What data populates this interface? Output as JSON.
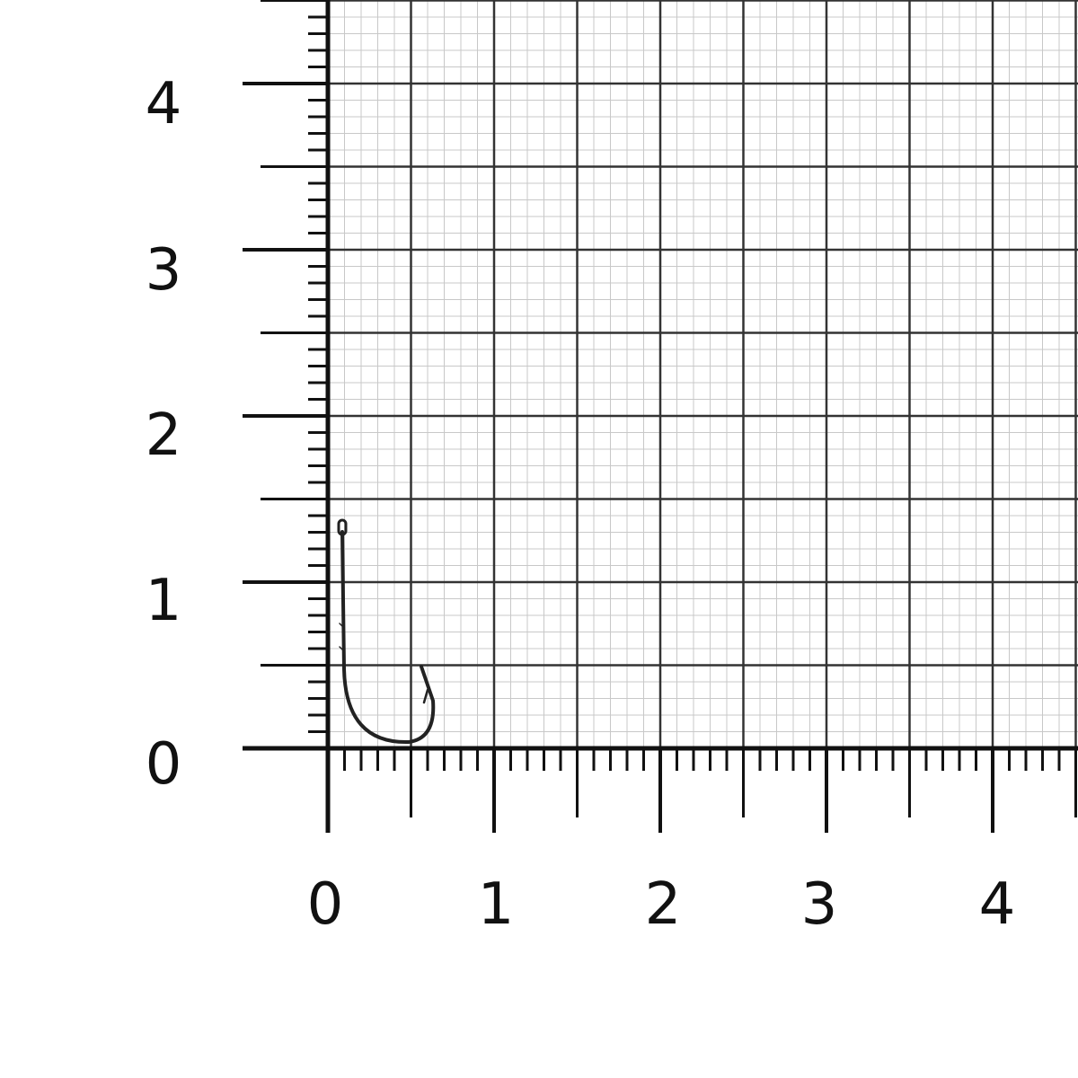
{
  "scale": {
    "x_tick_labels": [
      "0",
      "1",
      "2",
      "3",
      "4"
    ],
    "y_tick_labels": [
      "0",
      "1",
      "2",
      "3",
      "4"
    ],
    "major_step": 1,
    "half_step": 0.5,
    "minor_step": 0.1
  },
  "object": {
    "icon": "fishing-hook-icon",
    "approx_height_units": 1.4,
    "approx_width_units": 0.65
  },
  "colors": {
    "axis": "#111111",
    "major_grid": "#333333",
    "minor_grid": "#c8c8c8",
    "hook": "#222222"
  }
}
